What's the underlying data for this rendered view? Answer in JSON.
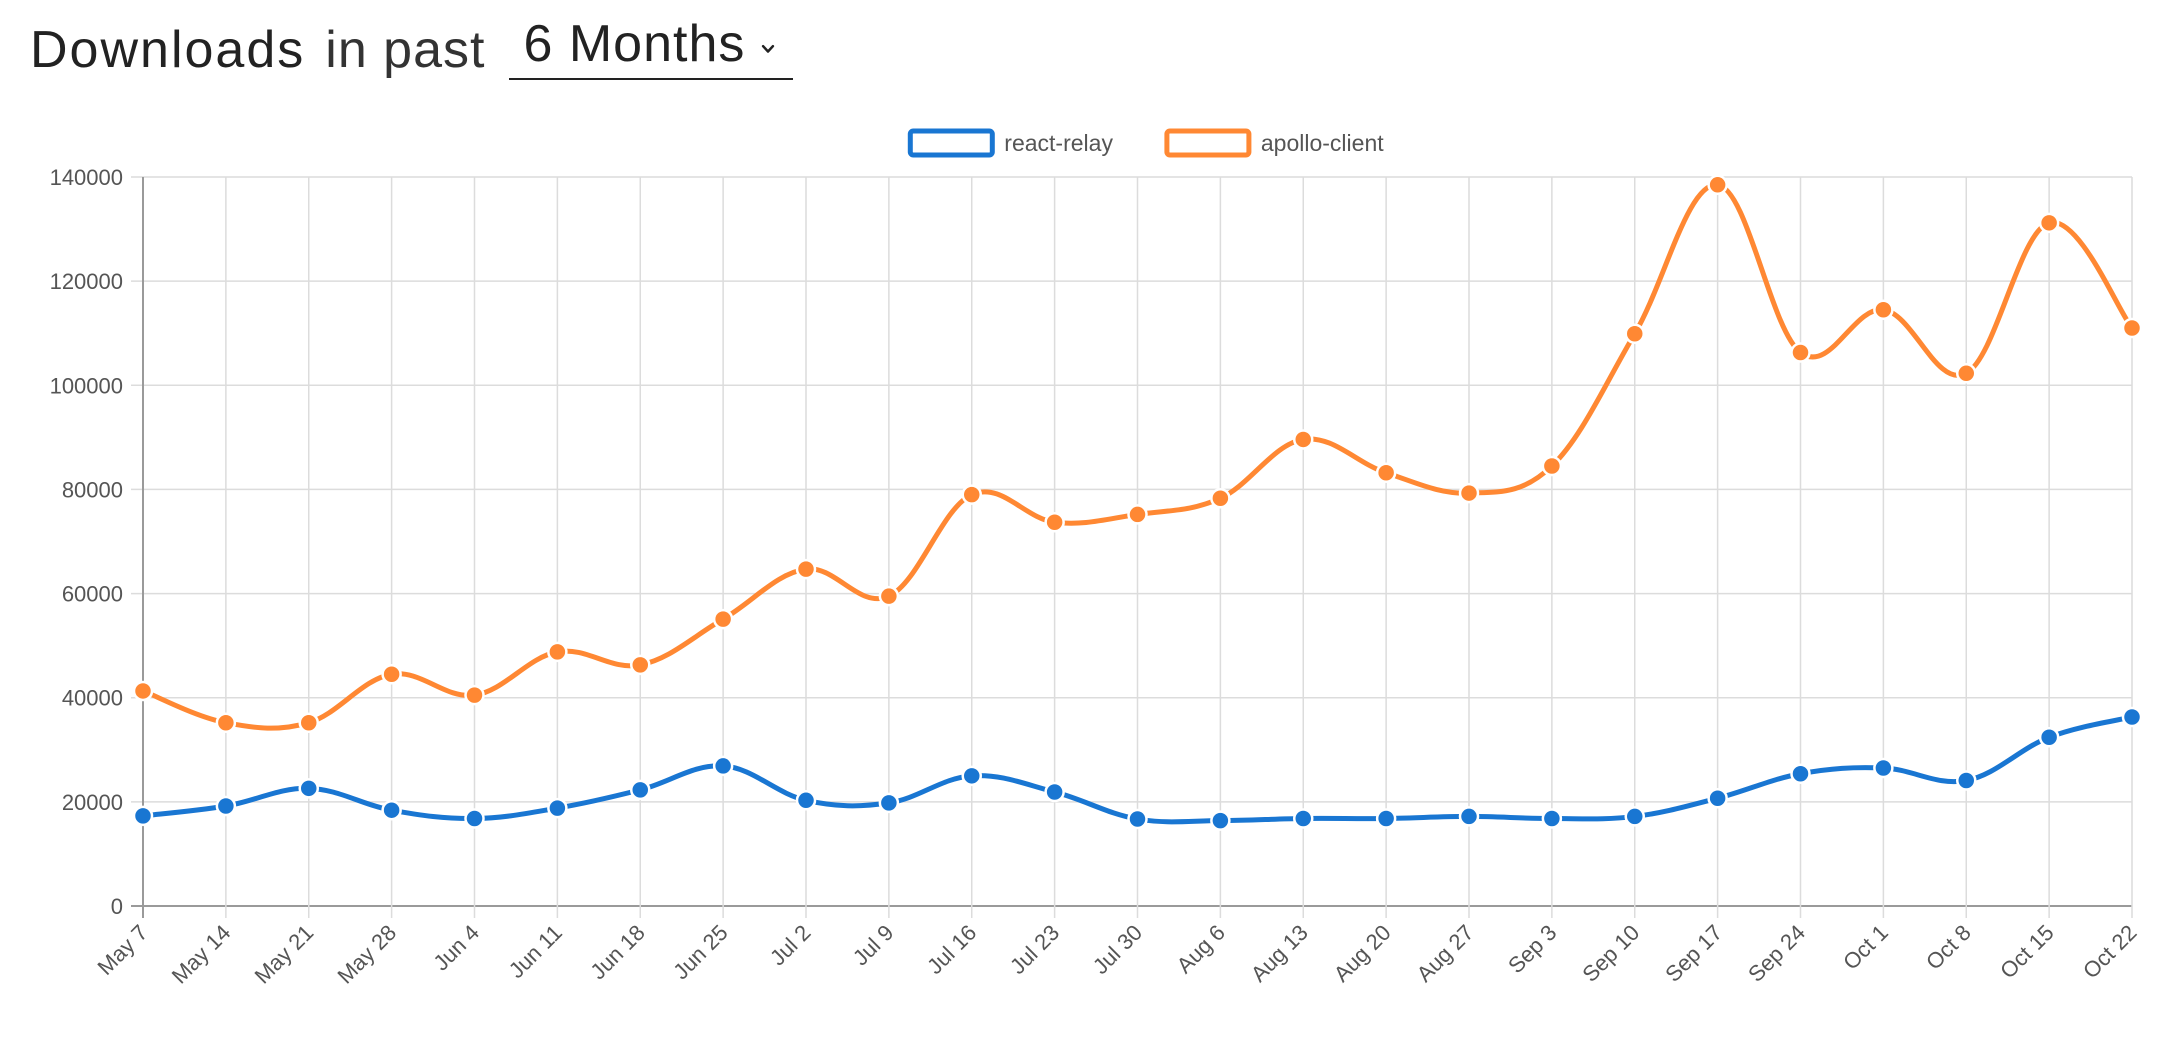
{
  "header": {
    "title_strong": "Downloads",
    "title_light": "in past",
    "period_selected": "6 Months",
    "period_icon": "chevron-down-icon"
  },
  "chart_data": {
    "type": "line",
    "title": "",
    "xlabel": "",
    "ylabel": "",
    "ylim": [
      0,
      140000
    ],
    "yticks": [
      0,
      20000,
      40000,
      60000,
      80000,
      100000,
      120000,
      140000
    ],
    "grid": true,
    "legend_position": "top-center",
    "categories": [
      "May 7",
      "May 14",
      "May 21",
      "May 28",
      "Jun 4",
      "Jun 11",
      "Jun 18",
      "Jun 25",
      "Jul 2",
      "Jul 9",
      "Jul 16",
      "Jul 23",
      "Jul 30",
      "Aug 6",
      "Aug 13",
      "Aug 20",
      "Aug 27",
      "Sep 3",
      "Sep 10",
      "Sep 17",
      "Sep 24",
      "Oct 1",
      "Oct 8",
      "Oct 15",
      "Oct 22"
    ],
    "series": [
      {
        "name": "react-relay",
        "color": "#1976d2",
        "values": [
          17300,
          19200,
          22600,
          18400,
          16800,
          18800,
          22300,
          26900,
          20300,
          19800,
          25000,
          21900,
          16700,
          16400,
          16800,
          16800,
          17200,
          16800,
          17200,
          20700,
          25400,
          26500,
          24100,
          32400,
          36300
        ]
      },
      {
        "name": "apollo-client",
        "color": "#ff8833",
        "values": [
          41300,
          35200,
          35200,
          44500,
          40500,
          48800,
          46300,
          55100,
          64700,
          59500,
          79000,
          73700,
          75200,
          78300,
          89600,
          83200,
          79300,
          84500,
          109900,
          138500,
          106300,
          114500,
          102300,
          131200,
          111000
        ]
      }
    ]
  }
}
